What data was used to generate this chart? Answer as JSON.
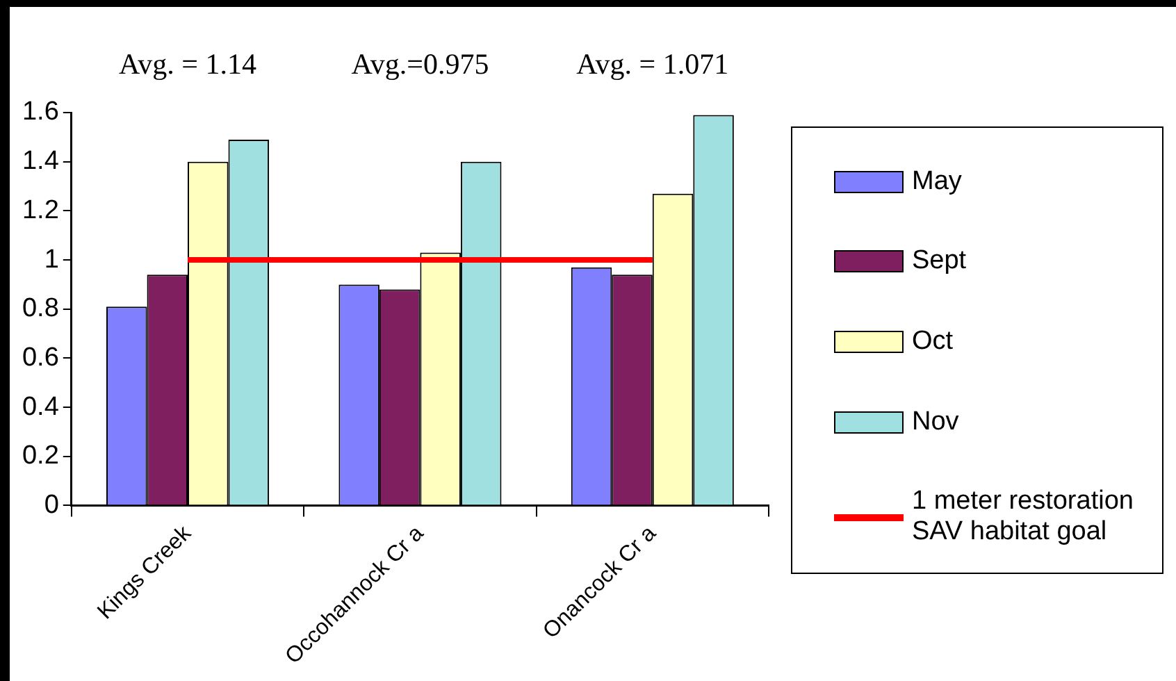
{
  "chart_data": {
    "type": "bar",
    "categories": [
      "Kings Creek",
      "Occohannock Cr a",
      "Onancock Cr a"
    ],
    "series": [
      {
        "name": "May",
        "color": "#8080ff",
        "values": [
          0.81,
          0.9,
          0.97
        ]
      },
      {
        "name": "Sept",
        "color": "#7f1f5f",
        "values": [
          0.94,
          0.88,
          0.94
        ]
      },
      {
        "name": "Oct",
        "color": "#ffffc0",
        "values": [
          1.4,
          1.03,
          1.27
        ]
      },
      {
        "name": "Nov",
        "color": "#a0e0e0",
        "values": [
          1.49,
          1.4,
          1.59
        ]
      },
      {
        "name": "1 meter restoration SAV habitat goal",
        "type": "line",
        "color": "#ff0000",
        "values": [
          1,
          1,
          1
        ]
      }
    ],
    "ylim": [
      0,
      1.6
    ],
    "yticks": [
      0,
      0.2,
      0.4,
      0.6,
      0.8,
      1,
      1.2,
      1.4,
      1.6
    ],
    "grid": false,
    "legend": "right",
    "marker": "none",
    "annotations": [
      "Avg. = 1.14",
      "Avg.=0.975",
      "Avg. = 1.071"
    ]
  }
}
